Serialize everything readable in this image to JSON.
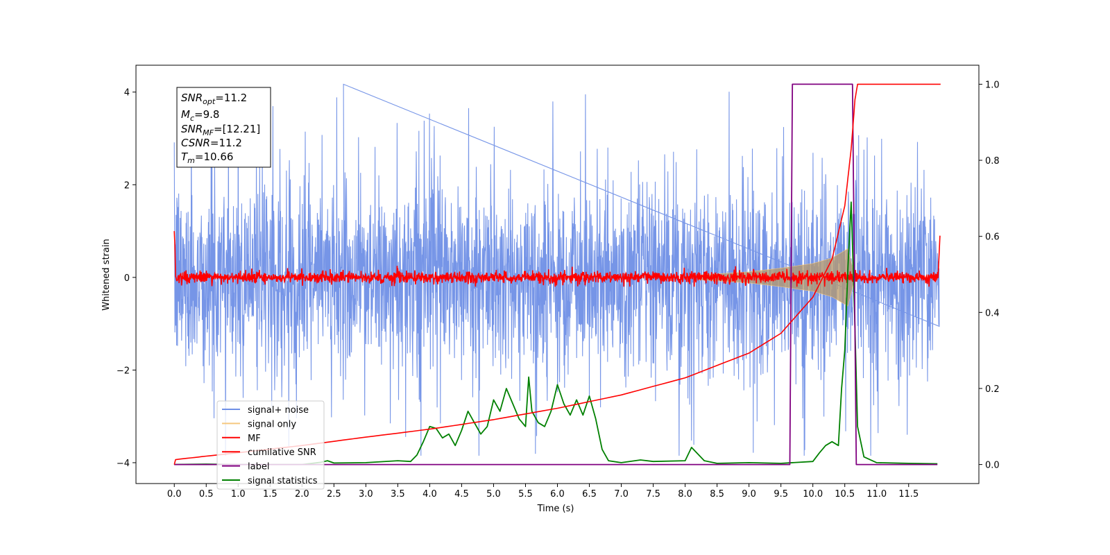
{
  "chart_data": {
    "type": "line",
    "xlabel": "Time (s)",
    "ylabel": "Whitened strain",
    "xlim": [
      -0.6,
      12.6
    ],
    "ylim": [
      -4.45,
      4.58
    ],
    "ylim_right": [
      -0.05,
      1.05
    ],
    "x_ticks": [
      0.0,
      0.5,
      1.0,
      1.5,
      2.0,
      2.5,
      3.0,
      3.5,
      4.0,
      4.5,
      5.0,
      5.5,
      6.0,
      6.5,
      7.0,
      7.5,
      8.0,
      8.5,
      9.0,
      9.5,
      10.0,
      10.5,
      11.0,
      11.5
    ],
    "x_tick_labels": [
      "0.0",
      "0.5",
      "1.0",
      "1.5",
      "2.0",
      "2.5",
      "3.0",
      "3.5",
      "4.0",
      "4.5",
      "5.0",
      "5.5",
      "6.0",
      "6.5",
      "7.0",
      "7.5",
      "8.0",
      "8.5",
      "9.0",
      "9.5",
      "10.0",
      "10.5",
      "11.0",
      "11.5"
    ],
    "y_ticks": [
      -4,
      -2,
      0,
      2,
      4
    ],
    "y_tick_labels": [
      "−4",
      "−2",
      "0",
      "2",
      "4"
    ],
    "y_ticks_right": [
      0.0,
      0.2,
      0.4,
      0.6,
      0.8,
      1.0
    ],
    "y_tick_labels_right": [
      "0.0",
      "0.2",
      "0.4",
      "0.6",
      "0.8",
      "1.0"
    ],
    "grid": false,
    "legend_position": "bottom-left",
    "info_box": {
      "snr_opt": {
        "base": "SNR",
        "sub": "opt",
        "value": "=11.2"
      },
      "mc": {
        "base": "M",
        "sub": "c",
        "value": "=9.8"
      },
      "snr_mf": {
        "base": "SNR",
        "sub": "MF",
        "value": "=[12.21]"
      },
      "csnr": {
        "base": "CSNR",
        "sub": "",
        "value": "=11.2"
      },
      "tm": {
        "base": "T",
        "sub": "m",
        "value": "=10.66"
      }
    },
    "series": [
      {
        "name": "signal+ noise",
        "color": "#6f8fe6",
        "axis": "left",
        "description": "noise band roughly -2 to 2, spikes to about 4.2 and -3.8, from t=0 to 12"
      },
      {
        "name": "signal only",
        "color": "#f5c77e",
        "axis": "left",
        "envelope": [
          [
            8.2,
            0.05
          ],
          [
            9.0,
            0.12
          ],
          [
            9.5,
            0.2
          ],
          [
            10.0,
            0.3
          ],
          [
            10.3,
            0.42
          ],
          [
            10.55,
            0.62
          ],
          [
            10.66,
            0.0
          ]
        ]
      },
      {
        "name": "MF",
        "color": "#ff0000",
        "axis": "left",
        "description": "noise around 0 with amplitude about 0.2; starts at 1.0 and ends at 0.9"
      },
      {
        "name": "cumilative SNR",
        "color": "#ff0000",
        "axis": "right",
        "points": [
          [
            0.0,
            0.0
          ],
          [
            0.02,
            0.013
          ],
          [
            0.5,
            0.022
          ],
          [
            1.0,
            0.031
          ],
          [
            2.0,
            0.05
          ],
          [
            3.0,
            0.072
          ],
          [
            4.0,
            0.093
          ],
          [
            5.0,
            0.118
          ],
          [
            6.0,
            0.148
          ],
          [
            7.0,
            0.183
          ],
          [
            8.0,
            0.228
          ],
          [
            9.0,
            0.293
          ],
          [
            9.5,
            0.345
          ],
          [
            10.0,
            0.44
          ],
          [
            10.3,
            0.54
          ],
          [
            10.5,
            0.68
          ],
          [
            10.6,
            0.83
          ],
          [
            10.66,
            0.96
          ],
          [
            10.7,
            1.0
          ],
          [
            12.0,
            1.0
          ]
        ]
      },
      {
        "name": "label",
        "color": "#800080",
        "axis": "right",
        "points": [
          [
            0.0,
            0.0
          ],
          [
            9.64,
            0.0
          ],
          [
            9.68,
            1.0
          ],
          [
            10.62,
            1.0
          ],
          [
            10.68,
            0.0
          ],
          [
            11.95,
            0.0
          ]
        ]
      },
      {
        "name": "signal statistics",
        "color": "#008000",
        "axis": "right",
        "points": [
          [
            0.0,
            0.0
          ],
          [
            0.5,
            0.001
          ],
          [
            1.0,
            0.0
          ],
          [
            2.0,
            0.0
          ],
          [
            2.3,
            0.006
          ],
          [
            2.4,
            0.01
          ],
          [
            2.5,
            0.004
          ],
          [
            3.0,
            0.005
          ],
          [
            3.5,
            0.01
          ],
          [
            3.7,
            0.008
          ],
          [
            3.8,
            0.025
          ],
          [
            3.9,
            0.06
          ],
          [
            4.0,
            0.1
          ],
          [
            4.1,
            0.095
          ],
          [
            4.2,
            0.07
          ],
          [
            4.3,
            0.08
          ],
          [
            4.4,
            0.05
          ],
          [
            4.5,
            0.09
          ],
          [
            4.6,
            0.14
          ],
          [
            4.7,
            0.11
          ],
          [
            4.8,
            0.08
          ],
          [
            4.9,
            0.1
          ],
          [
            5.0,
            0.17
          ],
          [
            5.1,
            0.14
          ],
          [
            5.2,
            0.2
          ],
          [
            5.3,
            0.16
          ],
          [
            5.4,
            0.12
          ],
          [
            5.5,
            0.1
          ],
          [
            5.55,
            0.23
          ],
          [
            5.6,
            0.14
          ],
          [
            5.7,
            0.11
          ],
          [
            5.8,
            0.1
          ],
          [
            5.9,
            0.14
          ],
          [
            6.0,
            0.21
          ],
          [
            6.1,
            0.16
          ],
          [
            6.2,
            0.13
          ],
          [
            6.3,
            0.17
          ],
          [
            6.4,
            0.13
          ],
          [
            6.5,
            0.18
          ],
          [
            6.6,
            0.12
          ],
          [
            6.7,
            0.04
          ],
          [
            6.8,
            0.01
          ],
          [
            7.0,
            0.005
          ],
          [
            7.3,
            0.012
          ],
          [
            7.5,
            0.008
          ],
          [
            8.0,
            0.01
          ],
          [
            8.1,
            0.045
          ],
          [
            8.3,
            0.01
          ],
          [
            8.5,
            0.003
          ],
          [
            9.0,
            0.005
          ],
          [
            9.5,
            0.003
          ],
          [
            10.0,
            0.008
          ],
          [
            10.1,
            0.03
          ],
          [
            10.2,
            0.05
          ],
          [
            10.3,
            0.06
          ],
          [
            10.4,
            0.05
          ],
          [
            10.45,
            0.2
          ],
          [
            10.5,
            0.3
          ],
          [
            10.55,
            0.52
          ],
          [
            10.6,
            0.69
          ],
          [
            10.65,
            0.42
          ],
          [
            10.7,
            0.1
          ],
          [
            10.8,
            0.02
          ],
          [
            11.0,
            0.005
          ],
          [
            11.5,
            0.003
          ],
          [
            11.95,
            0.002
          ]
        ]
      }
    ]
  }
}
